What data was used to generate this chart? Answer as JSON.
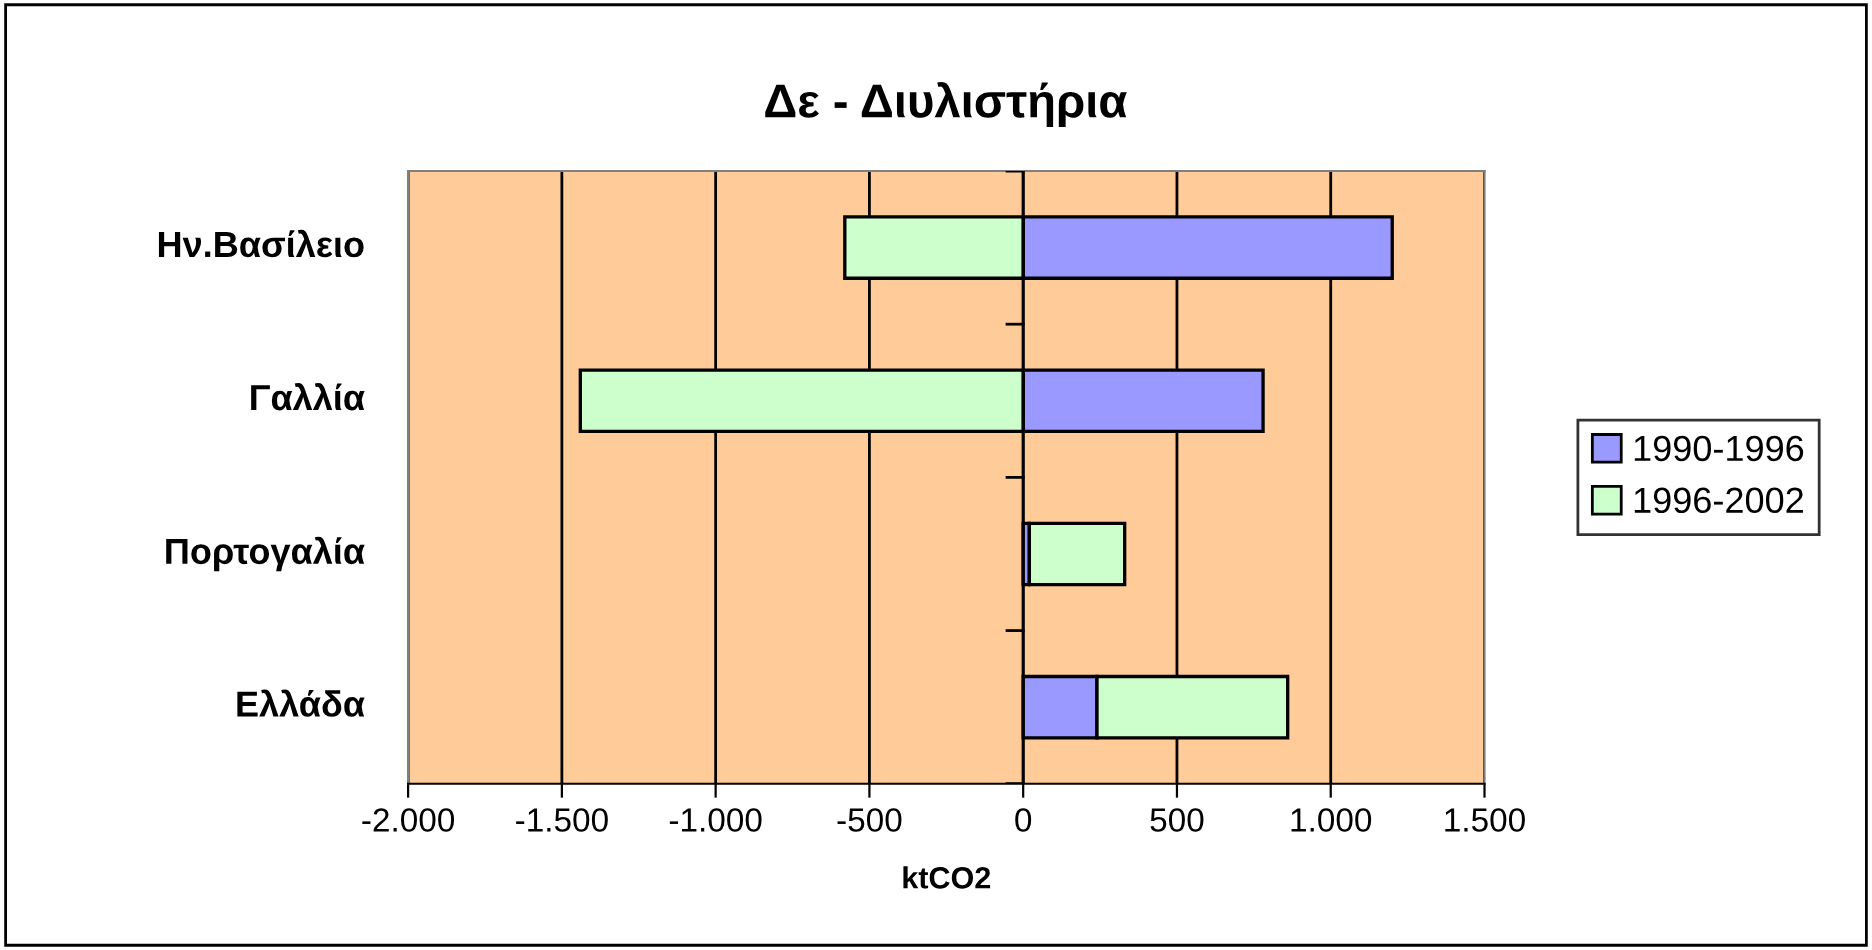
{
  "chart_data": {
    "type": "bar",
    "orientation": "horizontal",
    "stacked": true,
    "title": "Δε - Διυλιστήρια",
    "xlabel": "ktCO2",
    "categories": [
      "Ην.Βασίλειο",
      "Γαλλία",
      "Πορτογαλία",
      "Ελλάδα"
    ],
    "series": [
      {
        "name": "1990-1996",
        "color": "#9999ff",
        "values": [
          1200,
          780,
          20,
          240
        ]
      },
      {
        "name": "1996-2002",
        "color": "#ccffcc",
        "values": [
          -580,
          -1440,
          310,
          620
        ]
      }
    ],
    "xlim": [
      -2000,
      1500
    ],
    "xticks": [
      {
        "value": -2000,
        "label": "-2.000"
      },
      {
        "value": -1500,
        "label": "-1.500"
      },
      {
        "value": -1000,
        "label": "-1.000"
      },
      {
        "value": -500,
        "label": "-500"
      },
      0,
      500,
      {
        "value": 1000,
        "label": "1.000"
      },
      {
        "value": 1500,
        "label": "1.500"
      }
    ],
    "grid": "x",
    "legend": "right"
  }
}
